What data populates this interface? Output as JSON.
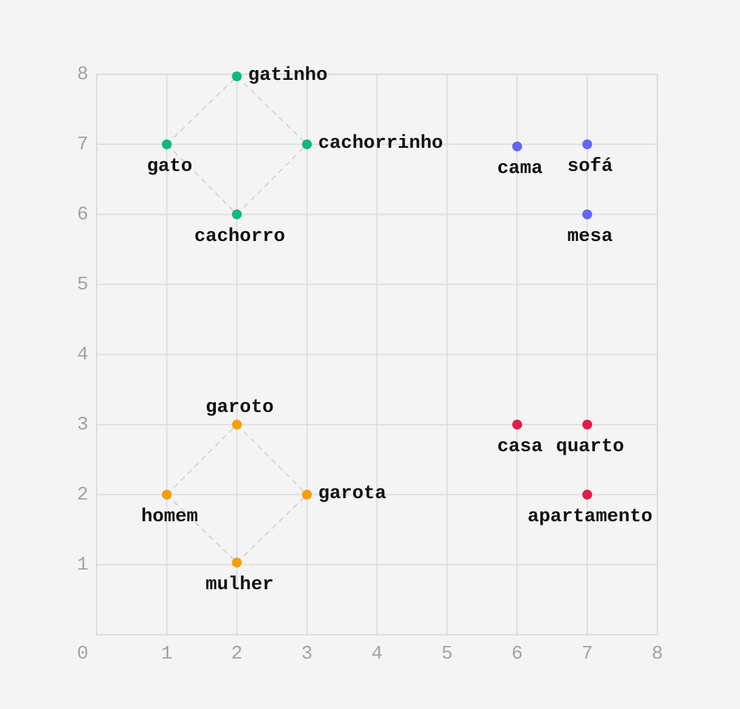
{
  "chart_data": {
    "type": "scatter",
    "xlim": [
      0,
      8
    ],
    "ylim": [
      0,
      8
    ],
    "xticks": [
      0,
      1,
      2,
      3,
      4,
      5,
      6,
      7,
      8
    ],
    "yticks": [
      1,
      2,
      3,
      4,
      5,
      6,
      7,
      8
    ],
    "grid": true,
    "series": [
      {
        "color": "#10b981",
        "labels": [
          "gatinho",
          "gato",
          "cachorrinho",
          "cachorro"
        ],
        "x": [
          2,
          1,
          3,
          2
        ],
        "y": [
          7.97,
          7,
          7,
          6
        ]
      },
      {
        "color": "#f59e0b",
        "labels": [
          "garoto",
          "homem",
          "garota",
          "mulher"
        ],
        "x": [
          2,
          1,
          3,
          2
        ],
        "y": [
          3,
          2,
          2,
          1.03
        ]
      },
      {
        "color": "#6366f1",
        "labels": [
          "cama",
          "sofá",
          "mesa"
        ],
        "x": [
          6,
          7,
          7
        ],
        "y": [
          6.97,
          7,
          6
        ]
      },
      {
        "color": "#e11d48",
        "labels": [
          "casa",
          "quarto",
          "apartamento"
        ],
        "x": [
          6,
          7,
          7
        ],
        "y": [
          3,
          3,
          2
        ]
      }
    ]
  }
}
